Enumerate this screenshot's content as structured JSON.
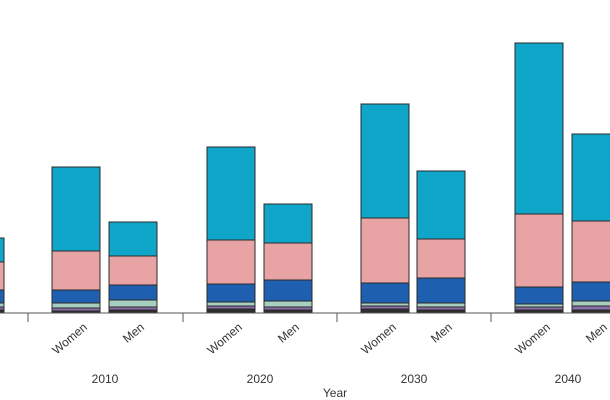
{
  "chart_data": {
    "type": "stacked-bar",
    "x_label": "Year",
    "groups": [
      "2010",
      "2020",
      "2030",
      "2040"
    ],
    "categories": [
      null,
      "Women",
      "Men",
      "Women",
      "Men",
      "Women",
      "Men",
      "Women",
      "Men"
    ],
    "series": [
      {
        "color": "#2e2e2e",
        "values": [
          3,
          2,
          3,
          4,
          3,
          4,
          3,
          3,
          3
        ]
      },
      {
        "color": "#8a6fa8",
        "values": [
          3,
          3,
          3,
          3,
          3,
          3,
          3,
          3,
          4
        ]
      },
      {
        "color": "#a6cfc0",
        "values": [
          4,
          5,
          7,
          4,
          6,
          3,
          4,
          3,
          5
        ]
      },
      {
        "color": "#1f5fb0",
        "values": [
          13,
          13,
          15,
          18,
          21,
          20,
          25,
          17,
          19
        ]
      },
      {
        "color": "#e8a4a4",
        "values": [
          28,
          39,
          29,
          44,
          37,
          65,
          39,
          73,
          61
        ]
      },
      {
        "color": "#0fa6c9",
        "values": [
          24,
          84,
          34,
          93,
          39,
          114,
          68,
          171,
          87
        ]
      }
    ],
    "ylim": [
      0,
      313
    ]
  }
}
